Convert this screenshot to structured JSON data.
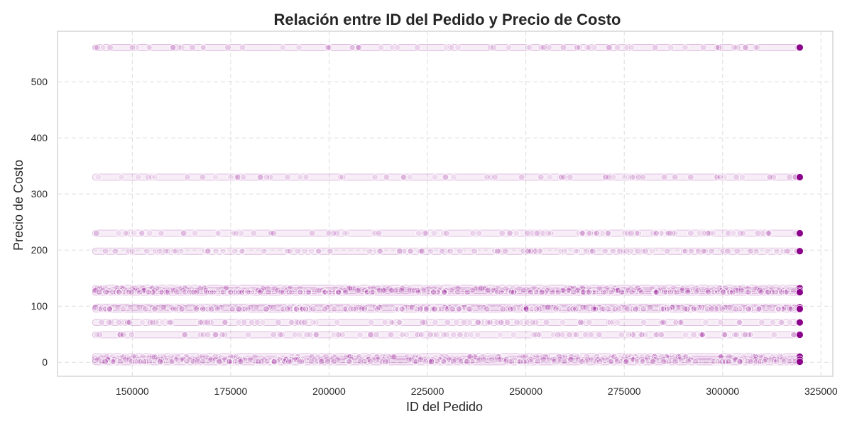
{
  "chart_data": {
    "type": "scatter",
    "title": "Relación entre ID del Pedido y Precio de Costo",
    "xlabel": "ID del Pedido",
    "ylabel": "Precio de Costo",
    "xlim": [
      131000,
      328000
    ],
    "ylim": [
      -25,
      590
    ],
    "x_ticks": [
      150000,
      175000,
      200000,
      225000,
      250000,
      275000,
      300000,
      325000
    ],
    "y_ticks": [
      0,
      100,
      200,
      300,
      400,
      500
    ],
    "grid": true,
    "legend": "none",
    "point_color": "#8B008B",
    "x_range_points": [
      140600,
      319600
    ],
    "levels": [
      {
        "y": 561,
        "density": "sparse"
      },
      {
        "y": 330,
        "density": "sparse"
      },
      {
        "y": 230,
        "density": "medium"
      },
      {
        "y": 198,
        "density": "medium"
      },
      {
        "y": 132,
        "density": "dense"
      },
      {
        "y": 128,
        "density": "dense"
      },
      {
        "y": 125,
        "density": "dense"
      },
      {
        "y": 98,
        "density": "dense"
      },
      {
        "y": 95,
        "density": "dense"
      },
      {
        "y": 71,
        "density": "medium"
      },
      {
        "y": 49,
        "density": "medium"
      },
      {
        "y": 10,
        "density": "dense"
      },
      {
        "y": 5,
        "density": "dense"
      },
      {
        "y": 1,
        "density": "dense"
      }
    ]
  }
}
